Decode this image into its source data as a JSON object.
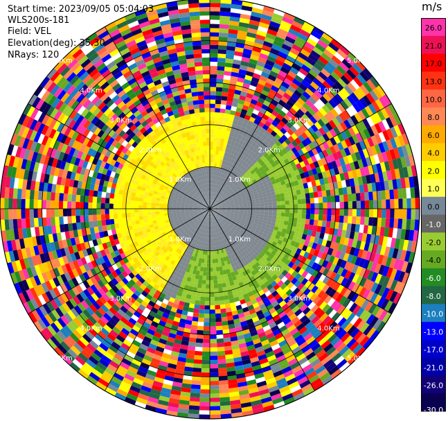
{
  "info": {
    "start_time": "Start time: 2023/09/05 05:04:03",
    "instrument": "WLS200s-181",
    "field": "Field: VEL",
    "elevation": "Elevation(deg): 35.30",
    "nrays": "NRays: 120"
  },
  "colorbar": {
    "unit": "m/s",
    "ticks": [
      "26.0",
      "21.0",
      "17.0",
      "13.0",
      "10.0",
      "8.0",
      "6.0",
      "4.0",
      "2.0",
      "1.0",
      "0.0",
      "-1.0",
      "-2.0",
      "-4.0",
      "-6.0",
      "-8.0",
      "-10.0",
      "-13.0",
      "-17.0",
      "-21.0",
      "-26.0",
      "-30.0"
    ],
    "colors": [
      "#ff33aa",
      "#ee1155",
      "#ff0000",
      "#ff3311",
      "#ff6644",
      "#ff8855",
      "#ffaa00",
      "#ffcc00",
      "#ffff00",
      "#ffff55",
      "#778899",
      "#666666",
      "#99cc33",
      "#66aa22",
      "#228b22",
      "#226644",
      "#1c7fc0",
      "#0000ff",
      "#0000cc",
      "#0000aa",
      "#110077",
      "#0a0050"
    ]
  },
  "chart_data": {
    "type": "heatmap",
    "projection": "polar",
    "field": "VEL",
    "unit": "m/s",
    "nrays": 120,
    "elevation_deg": 35.3,
    "range_rings_km": [
      1.0,
      2.0,
      3.0,
      4.0,
      5.0
    ],
    "ring_labels": [
      "1.0Km",
      "2.0Km",
      "3.0Km",
      "4.0Km",
      "5.0Km"
    ],
    "max_range_km": 5.0,
    "colorscale_range": [
      -30.0,
      26.0
    ],
    "valid_data_range_km": [
      0.0,
      2.3
    ],
    "regions": [
      {
        "range_km": [
          0.0,
          1.6
        ],
        "description_value": 0.0
      },
      {
        "azimuth_deg": [
          210,
          360
        ],
        "range_km": [
          0.3,
          2.3
        ],
        "value": 2.0
      },
      {
        "azimuth_deg": [
          0,
          15
        ],
        "range_km": [
          1.0,
          2.3
        ],
        "value": 2.0
      },
      {
        "azimuth_deg": [
          45,
          200
        ],
        "range_km": [
          0.5,
          2.3
        ],
        "value": -3.0
      }
    ],
    "noise_beyond_km": 2.3
  }
}
